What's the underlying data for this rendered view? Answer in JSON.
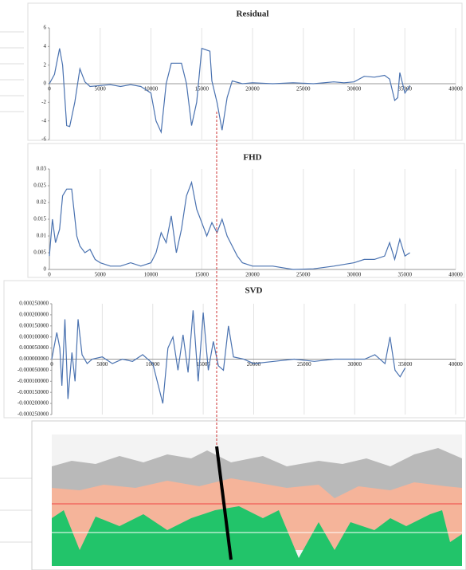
{
  "chart_data": [
    {
      "type": "line",
      "title": "Residual",
      "color": "#4a72b0",
      "grid": true,
      "x": [
        0,
        500,
        1000,
        1300,
        1700,
        2000,
        2500,
        3000,
        3500,
        4000,
        5000,
        6000,
        7000,
        8000,
        9000,
        10000,
        10500,
        11000,
        11500,
        12000,
        13000,
        13500,
        14000,
        14500,
        15000,
        15800,
        16000,
        16500,
        17000,
        17500,
        18000,
        19000,
        20000,
        22000,
        24000,
        26000,
        28000,
        29000,
        30000,
        31000,
        32000,
        33000,
        33500,
        34000,
        34300,
        34500,
        35000,
        35500
      ],
      "series": [
        {
          "color": "#4a72b0",
          "values": [
            0,
            1,
            3.8,
            2,
            -4.5,
            -4.6,
            -2,
            1.6,
            0.2,
            -0.3,
            -0.2,
            -0.1,
            -0.3,
            -0.1,
            -0.3,
            -1,
            -4,
            -5.2,
            0,
            2.2,
            2.2,
            0,
            -4.5,
            -2,
            3.8,
            3.5,
            0.3,
            -2,
            -5,
            -1.5,
            0.3,
            0,
            0.1,
            0,
            0.1,
            0,
            0.2,
            0.1,
            0.2,
            0.8,
            0.7,
            0.9,
            0.5,
            -1.8,
            -1.5,
            1.2,
            -1,
            -0.2
          ]
        }
      ],
      "xlim": [
        0,
        40000
      ],
      "xticks": [
        0,
        5000,
        10000,
        15000,
        20000,
        25000,
        30000,
        35000,
        40000
      ],
      "ylim": [
        -6,
        6
      ],
      "yticks": [
        6,
        4,
        2,
        0,
        -2,
        -4,
        -6
      ]
    },
    {
      "type": "line",
      "title": "FHD",
      "color": "#4a72b0",
      "grid": true,
      "x": [
        0,
        300,
        600,
        1000,
        1300,
        1700,
        2200,
        2700,
        3000,
        3500,
        4000,
        4500,
        5000,
        6000,
        7000,
        8000,
        9000,
        10000,
        10500,
        11000,
        11500,
        12000,
        12500,
        13000,
        13500,
        14000,
        14500,
        15000,
        15500,
        16000,
        16500,
        17000,
        17500,
        18000,
        18500,
        19000,
        20000,
        22000,
        24000,
        26000,
        28000,
        30000,
        31000,
        32000,
        33000,
        33500,
        34000,
        34500,
        35000,
        35500
      ],
      "series": [
        {
          "color": "#4a72b0",
          "values": [
            0.004,
            0.015,
            0.008,
            0.012,
            0.022,
            0.024,
            0.024,
            0.01,
            0.007,
            0.005,
            0.006,
            0.003,
            0.002,
            0.001,
            0.001,
            0.002,
            0.001,
            0.002,
            0.005,
            0.011,
            0.008,
            0.016,
            0.005,
            0.012,
            0.022,
            0.026,
            0.018,
            0.014,
            0.01,
            0.014,
            0.011,
            0.015,
            0.01,
            0.007,
            0.004,
            0.002,
            0.001,
            0.001,
            0,
            0.0002,
            0.001,
            0.002,
            0.003,
            0.003,
            0.004,
            0.008,
            0.003,
            0.009,
            0.004,
            0.005
          ]
        }
      ],
      "xlim": [
        0,
        40000
      ],
      "xticks": [
        0,
        5000,
        10000,
        15000,
        20000,
        25000,
        30000,
        35000,
        40000
      ],
      "ylim": [
        0,
        0.03
      ],
      "yticks": [
        0.03,
        0.025,
        0.02,
        0.015,
        0.01,
        0.005,
        0
      ]
    },
    {
      "type": "line",
      "title": "SVD",
      "color": "#4a72b0",
      "grid": true,
      "x": [
        0,
        500,
        800,
        1000,
        1300,
        1600,
        2000,
        2300,
        2600,
        3000,
        3500,
        4000,
        5000,
        6000,
        7000,
        8000,
        9000,
        10000,
        11000,
        11500,
        12000,
        12500,
        13000,
        13500,
        14000,
        14500,
        15000,
        15500,
        16000,
        16500,
        17000,
        17500,
        18000,
        19000,
        20000,
        22000,
        24000,
        26000,
        28000,
        30000,
        31000,
        32000,
        33000,
        33500,
        34000,
        34500,
        35000
      ],
      "series": [
        {
          "color": "#4a72b0",
          "values": [
            0,
            0.00012,
            5e-05,
            -0.00012,
            0.00018,
            -0.00018,
            3e-05,
            -0.0001,
            0.00018,
            2e-05,
            -2e-05,
            0,
            1e-05,
            -2e-05,
            0,
            -1e-05,
            2e-05,
            -2e-05,
            -0.0002,
            5e-05,
            0.0001,
            -5e-05,
            0.00011,
            -6e-05,
            0.00022,
            -0.0001,
            0.00021,
            -5e-05,
            8e-05,
            -3e-05,
            -5e-05,
            0.00015,
            1e-05,
            0,
            -2e-05,
            -1e-05,
            0,
            -1e-05,
            0,
            0,
            0,
            2e-05,
            -2e-05,
            0.0001,
            -5e-05,
            -8e-05,
            -4e-05
          ]
        }
      ],
      "xlim": [
        0,
        40000
      ],
      "xticks": [
        0,
        5000,
        10000,
        15000,
        20000,
        25000,
        30000,
        35000,
        40000
      ],
      "ylim": [
        -0.00025,
        0.00025
      ],
      "yticks": [
        {
          "value": 0.00025,
          "label": "0.000250000"
        },
        {
          "value": 0.0002,
          "label": "0.000200000"
        },
        {
          "value": 0.00015,
          "label": "0.000150000"
        },
        {
          "value": 0.0001,
          "label": "0.000100000"
        },
        {
          "value": 5e-05,
          "label": "0.000050000"
        },
        {
          "value": 0,
          "label": "0.000000000"
        },
        {
          "value": -5e-05,
          "label": "-0.000050000"
        },
        {
          "value": -0.0001,
          "label": "-0.000100000"
        },
        {
          "value": -0.00015,
          "label": "-0.000150000"
        },
        {
          "value": -0.0002,
          "label": "-0.000200000"
        },
        {
          "value": -0.00025,
          "label": "-0.000250000"
        }
      ]
    }
  ]
}
